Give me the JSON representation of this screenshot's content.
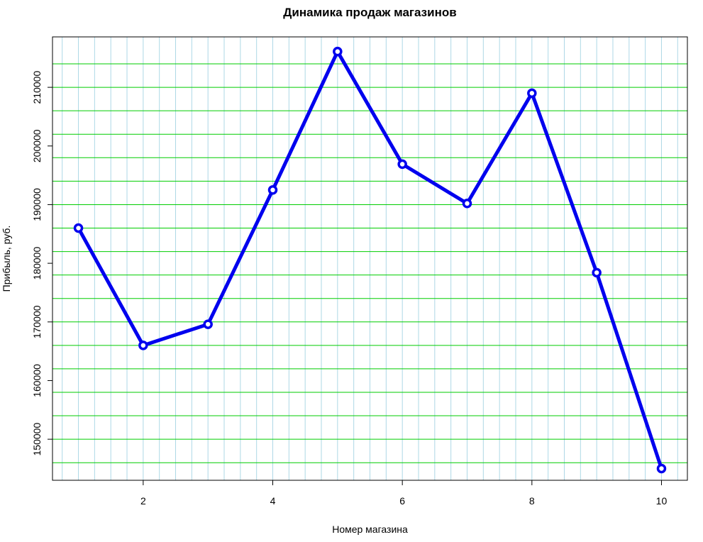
{
  "chart_data": {
    "type": "line",
    "title": "Динамика продаж магазинов",
    "xlabel": "Номер магазина",
    "ylabel": "Прибыль, руб.",
    "x": [
      1,
      2,
      3,
      4,
      5,
      6,
      7,
      8,
      9,
      10
    ],
    "series": [
      {
        "values": [
          186000,
          166000,
          169600,
          192500,
          216100,
          196900,
          190200,
          209000,
          178400,
          145000
        ],
        "color": "#0000ee"
      }
    ],
    "xlim": [
      0.6,
      10.4
    ],
    "ylim": [
      143000,
      218600
    ],
    "xticks": [
      2,
      4,
      6,
      8,
      10
    ],
    "yticks": [
      150000,
      160000,
      170000,
      180000,
      190000,
      200000,
      210000
    ],
    "xtick_labels": [
      "2",
      "4",
      "6",
      "8",
      "10"
    ],
    "ytick_labels": [
      "150000",
      "160000",
      "170000",
      "180000",
      "190000",
      "200000",
      "210000"
    ],
    "grid": true,
    "grid_colors": {
      "vertical": "#add8e6",
      "horizontal": "#00cd00"
    },
    "grid_x_step": 0.25,
    "grid_y_step": 4000,
    "grid_y_start": 146000,
    "grid_y_end": 214000
  }
}
